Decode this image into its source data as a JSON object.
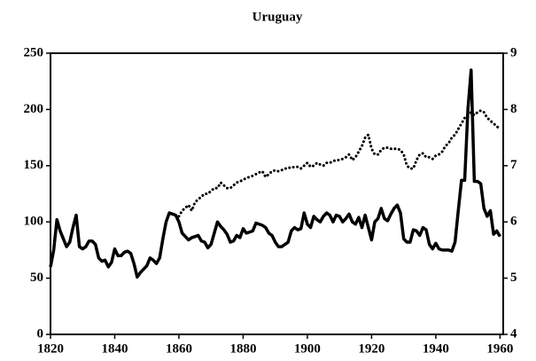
{
  "chart_data": {
    "type": "line",
    "title": "Uruguay",
    "x": [
      1820,
      1821,
      1822,
      1823,
      1824,
      1825,
      1826,
      1827,
      1828,
      1829,
      1830,
      1831,
      1832,
      1833,
      1834,
      1835,
      1836,
      1837,
      1838,
      1839,
      1840,
      1841,
      1842,
      1843,
      1844,
      1845,
      1846,
      1847,
      1848,
      1849,
      1850,
      1851,
      1852,
      1853,
      1854,
      1855,
      1856,
      1857,
      1858,
      1859,
      1860,
      1861,
      1862,
      1863,
      1864,
      1865,
      1866,
      1867,
      1868,
      1869,
      1870,
      1871,
      1872,
      1873,
      1874,
      1875,
      1876,
      1877,
      1878,
      1879,
      1880,
      1881,
      1882,
      1883,
      1884,
      1885,
      1886,
      1887,
      1888,
      1889,
      1890,
      1891,
      1892,
      1893,
      1894,
      1895,
      1896,
      1897,
      1898,
      1899,
      1900,
      1901,
      1902,
      1903,
      1904,
      1905,
      1906,
      1907,
      1908,
      1909,
      1910,
      1911,
      1912,
      1913,
      1914,
      1915,
      1916,
      1917,
      1918,
      1919,
      1920,
      1921,
      1922,
      1923,
      1924,
      1925,
      1926,
      1927,
      1928,
      1929,
      1930,
      1931,
      1932,
      1933,
      1934,
      1935,
      1936,
      1937,
      1938,
      1939,
      1940,
      1941,
      1942,
      1943,
      1944,
      1945,
      1946,
      1947,
      1948,
      1949,
      1950,
      1951,
      1952,
      1953,
      1954,
      1955,
      1956,
      1957,
      1958,
      1959,
      1960
    ],
    "series": [
      {
        "color": "#000000",
        "style": "solid",
        "axis": "y",
        "values": [
          60,
          75,
          102,
          92,
          85,
          78,
          82,
          95,
          106,
          78,
          76,
          78,
          83,
          83,
          80,
          68,
          65,
          66,
          60,
          64,
          76,
          70,
          70,
          73,
          74,
          72,
          63,
          51,
          55,
          58,
          61,
          68,
          66,
          63,
          68,
          85,
          100,
          108,
          107,
          106,
          100,
          90,
          87,
          84,
          86,
          87,
          88,
          83,
          82,
          77,
          80,
          90,
          100,
          96,
          93,
          89,
          82,
          83,
          88,
          86,
          94,
          90,
          91,
          92,
          99,
          98,
          97,
          95,
          90,
          88,
          82,
          78,
          78,
          80,
          82,
          92,
          95,
          93,
          94,
          108,
          98,
          95,
          105,
          102,
          100,
          105,
          108,
          106,
          100,
          106,
          105,
          100,
          103,
          107,
          100,
          98,
          104,
          95,
          106,
          95,
          84,
          100,
          103,
          112,
          103,
          101,
          107,
          112,
          115,
          108,
          85,
          82,
          82,
          93,
          92,
          88,
          95,
          93,
          80,
          76,
          81,
          76,
          75,
          75,
          75,
          74,
          82,
          110,
          137,
          137,
          200,
          235,
          136,
          136,
          134,
          112,
          105,
          110,
          89,
          92,
          87
        ]
      },
      {
        "color": "#000000",
        "style": "dotted",
        "axis": "y2",
        "values": [
          null,
          null,
          null,
          null,
          null,
          null,
          null,
          null,
          null,
          null,
          null,
          null,
          null,
          null,
          null,
          null,
          null,
          null,
          null,
          null,
          null,
          null,
          null,
          null,
          null,
          null,
          null,
          null,
          null,
          null,
          null,
          null,
          null,
          null,
          null,
          null,
          null,
          null,
          null,
          null,
          6.1,
          6.2,
          6.25,
          6.3,
          6.2,
          6.35,
          6.4,
          6.45,
          6.5,
          6.5,
          6.55,
          6.6,
          6.6,
          6.7,
          6.65,
          6.6,
          6.6,
          6.65,
          6.7,
          6.72,
          6.75,
          6.78,
          6.8,
          6.82,
          6.85,
          6.88,
          6.9,
          6.8,
          6.85,
          6.9,
          6.92,
          6.9,
          6.92,
          6.95,
          6.95,
          6.98,
          6.97,
          6.98,
          6.95,
          7.0,
          7.05,
          6.98,
          7.0,
          7.05,
          7.02,
          7.0,
          7.05,
          7.05,
          7.08,
          7.1,
          7.1,
          7.12,
          7.15,
          7.2,
          7.1,
          7.15,
          7.25,
          7.35,
          7.5,
          7.55,
          7.3,
          7.2,
          7.2,
          7.28,
          7.32,
          7.32,
          7.3,
          7.3,
          7.3,
          7.28,
          7.2,
          7.0,
          6.95,
          6.95,
          7.1,
          7.2,
          7.22,
          7.15,
          7.15,
          7.12,
          7.18,
          7.2,
          7.25,
          7.35,
          7.4,
          7.5,
          7.55,
          7.65,
          7.75,
          7.85,
          7.9,
          7.95,
          7.9,
          7.95,
          7.98,
          7.95,
          7.85,
          7.8,
          7.75,
          7.7,
          7.65
        ]
      }
    ],
    "xlim": [
      1820,
      1961
    ],
    "xticks": [
      1820,
      1840,
      1860,
      1880,
      1900,
      1920,
      1940,
      1960
    ],
    "ylim": [
      0,
      250
    ],
    "yticks": [
      0,
      50,
      100,
      150,
      200,
      250
    ],
    "y2lim": [
      4,
      9
    ],
    "y2ticks": [
      4,
      5,
      6,
      7,
      8,
      9
    ]
  }
}
